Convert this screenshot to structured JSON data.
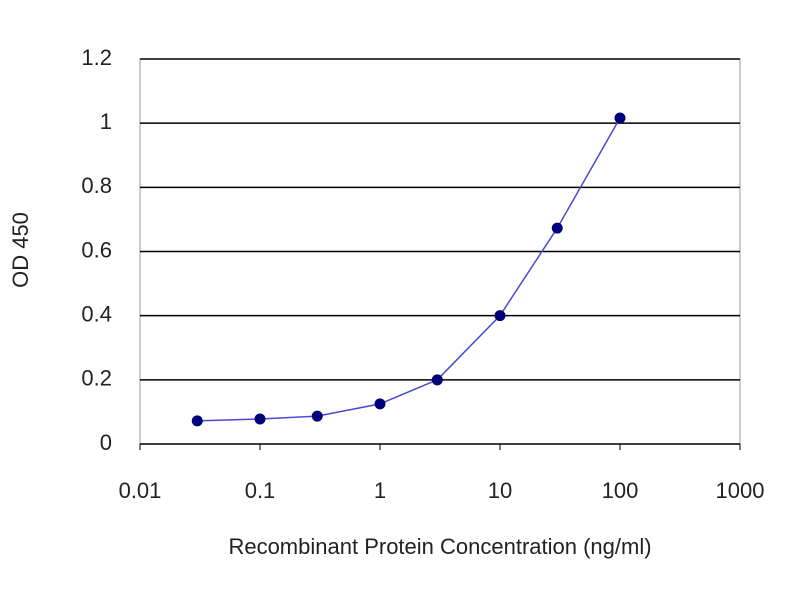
{
  "chart_data": {
    "type": "line",
    "x_label": "Recombinant Protein Concentration (ng/ml)",
    "y_label": "OD 450",
    "x": [
      0.03,
      0.1,
      0.3,
      1,
      3,
      10,
      30,
      100
    ],
    "series": [
      {
        "color": "#00007a",
        "values": [
          0.072,
          0.078,
          0.087,
          0.125,
          0.2,
          0.4,
          0.673,
          1.016
        ]
      }
    ],
    "xscale": "log",
    "xlim": [
      0.01,
      1000
    ],
    "xticks": [
      0.01,
      0.1,
      1,
      10,
      100,
      1000
    ],
    "ylim": [
      0,
      1.2
    ],
    "yticks": [
      0,
      0.2,
      0.4,
      0.6,
      0.8,
      1,
      1.2
    ],
    "grid": true
  }
}
